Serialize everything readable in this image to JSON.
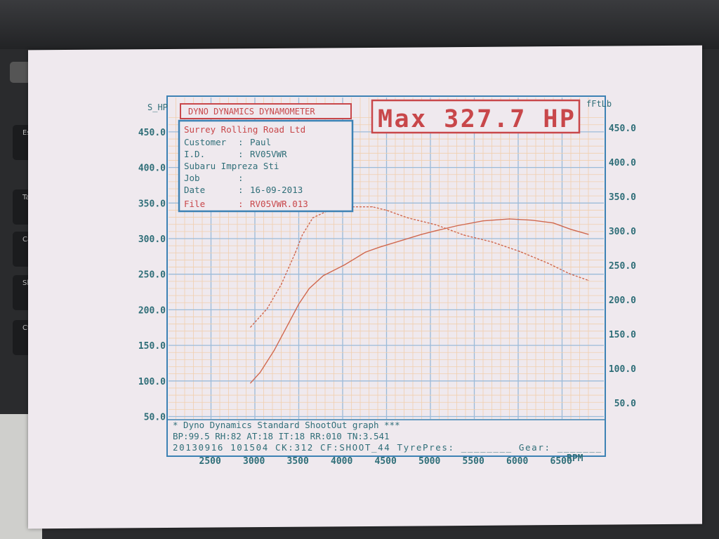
{
  "background_keys": [
    "Esc",
    "Tab",
    "Caps",
    "Shift",
    "Ctrl"
  ],
  "header": {
    "title": "DYNO DYNAMICS DYNAMOMETER",
    "max_label": "Max 327.7 HP"
  },
  "info_box": {
    "company": "Surrey Rolling Road Ltd",
    "rows": [
      {
        "label": "Customer",
        "sep": ":",
        "value": "Paul"
      },
      {
        "label": "I.D.",
        "sep": ":",
        "value": "RV05VWR"
      },
      {
        "label": "Subaru Impreza Sti",
        "sep": "",
        "value": ""
      },
      {
        "label": "Job",
        "sep": ":",
        "value": ""
      },
      {
        "label": "Date",
        "sep": ":",
        "value": "16-09-2013"
      },
      {
        "label": "File",
        "sep": ":",
        "value": "RV05VWR.013"
      }
    ]
  },
  "footer": {
    "line1": "* Dyno Dynamics Standard ShootOut graph ***",
    "line2": "BP:99.5  RH:82 AT:18 IT:18  RR:010 TN:3.541",
    "line3": "20130916 101504 CK:312 CF:SHOOT_44 TyrePres: ________ Gear: _______"
  },
  "colors": {
    "frame": "#3d82b4",
    "text": "#2f6e78",
    "red": "#c8474a",
    "grid_major": "#9bbbd9",
    "grid_minor": "#f0cfae",
    "curve": "#d0684f"
  },
  "chart_data": {
    "type": "line",
    "xlabel": "RPM",
    "ylabel_left": "S_HP",
    "ylabel_right": "fFtLb",
    "x_ticks": [
      2500,
      3000,
      3500,
      4000,
      4500,
      5000,
      5500,
      6000,
      6500
    ],
    "x_tick_labels": [
      "2500",
      "3000",
      "3500",
      "4000",
      "4500",
      "5000",
      "5500",
      "6000",
      "6500"
    ],
    "y_left_ticks": [
      "450.0",
      "400.0",
      "350.0",
      "300.0",
      "250.0",
      "200.0",
      "150.0",
      "100.0",
      "50.0"
    ],
    "y_right_ticks": [
      "450.0",
      "400.0",
      "350.0",
      "300.0",
      "250.0",
      "200.0",
      "150.0",
      "100.0",
      "50.0"
    ],
    "ylim_left": [
      50,
      450
    ],
    "ylim_right": [
      50,
      450
    ],
    "grid": true,
    "series": [
      {
        "axis": "left",
        "style": "solid",
        "x": [
          2950,
          3060,
          3220,
          3380,
          3500,
          3620,
          3780,
          4020,
          4260,
          4420,
          4660,
          4900,
          5060,
          5300,
          5600,
          5900,
          6150,
          6400,
          6600,
          6800
        ],
        "y": [
          97,
          112,
          143,
          180,
          208,
          230,
          248,
          263,
          281,
          288,
          297,
          306,
          311,
          318,
          325,
          327.7,
          326,
          322,
          313,
          306
        ]
      },
      {
        "axis": "right",
        "style": "dashed",
        "x": [
          2950,
          3140,
          3300,
          3460,
          3540,
          3660,
          3860,
          4100,
          4340,
          4500,
          4740,
          5060,
          5380,
          5700,
          6020,
          6340,
          6580,
          6800
        ],
        "y": [
          160,
          187,
          222,
          268,
          294,
          319,
          331,
          335,
          335,
          330,
          319,
          309,
          294,
          284,
          270,
          253,
          238,
          228
        ]
      }
    ]
  }
}
